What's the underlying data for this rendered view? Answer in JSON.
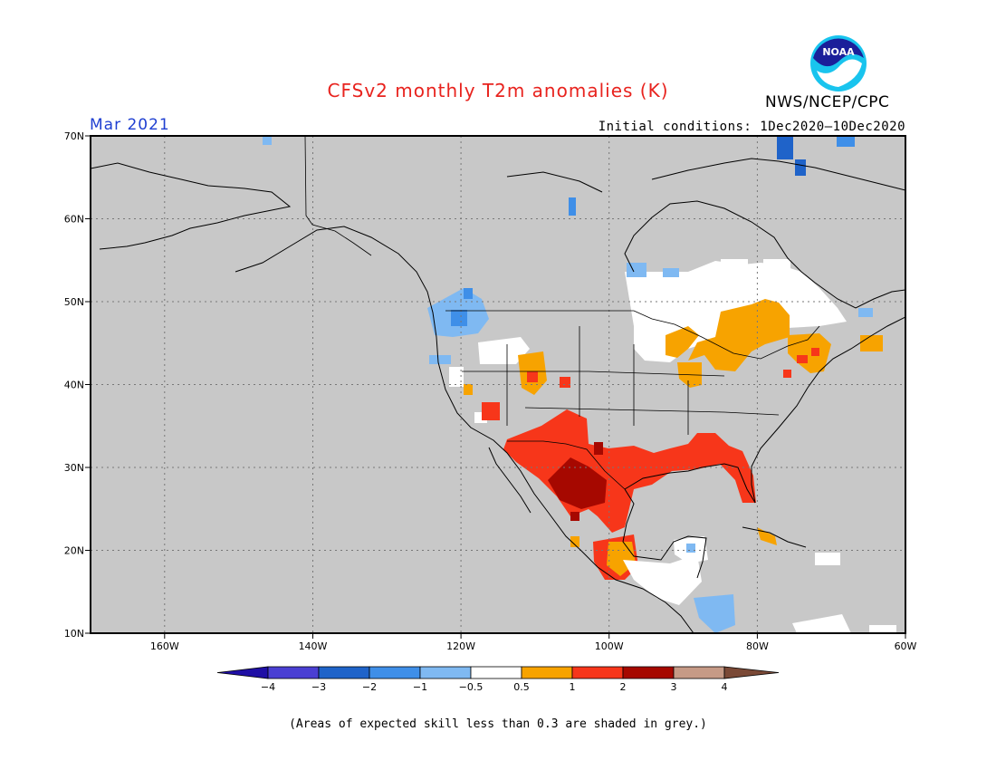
{
  "header": {
    "title": "CFSv2 monthly T2m anomalies (K)",
    "month": "Mar 2021",
    "agency": "NWS/NCEP/CPC",
    "initial_conditions": "Initial conditions: 1Dec2020—10Dec2020",
    "logo_text": "NOAA",
    "logo_icon": "noaa-logo-icon"
  },
  "map": {
    "lon_range": [
      -172,
      -60
    ],
    "lat_range": [
      10,
      70
    ],
    "lon_ticks": [
      "160W",
      "140W",
      "120W",
      "100W",
      "80W",
      "60W"
    ],
    "lat_ticks": [
      "70N",
      "60N",
      "50N",
      "40N",
      "30N",
      "20N",
      "10N"
    ],
    "grid": true,
    "colors": {
      "low_skill_grey": "#c8c8c8",
      "neutral": "#ffffff",
      "cold_05_1": "#7fb9f2",
      "cold_1_2": "#3f8fe8",
      "cold_2_3": "#1f63c9",
      "warm_05_1": "#f7a300",
      "warm_1_2": "#f7361a",
      "warm_2_3": "#a60800",
      "coastline": "#000000"
    }
  },
  "colorbar": {
    "colors": [
      "#1f0fa5",
      "#4a3fd3",
      "#1f63c9",
      "#3f8fe8",
      "#7fb9f2",
      "#ffffff",
      "#f7a300",
      "#f7361a",
      "#a60800",
      "#c69a86",
      "#7a4936"
    ],
    "labels": [
      "−4",
      "−3",
      "−2",
      "−1",
      "−0.5",
      "0.5",
      "1",
      "2",
      "3",
      "4"
    ]
  },
  "footnote": "(Areas of expected skill less than 0.3 are shaded in grey.)"
}
